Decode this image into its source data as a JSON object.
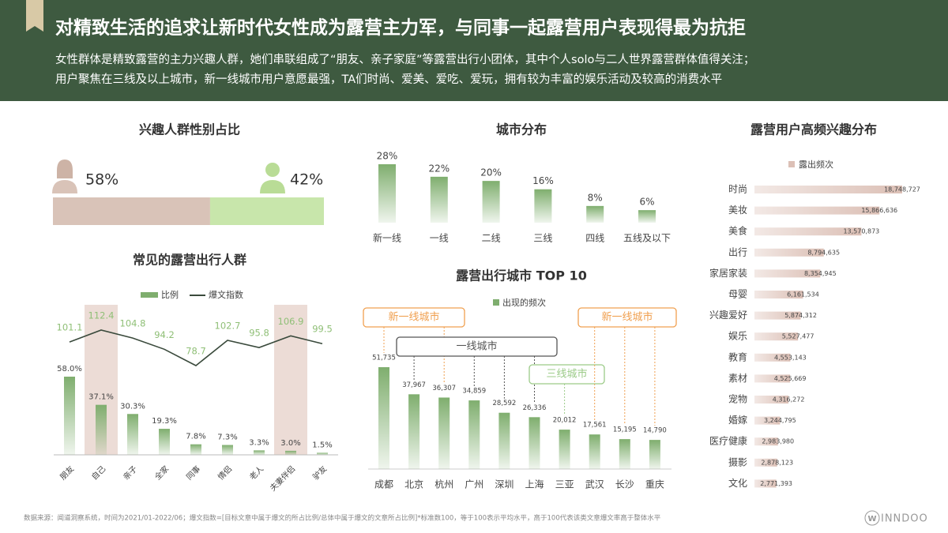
{
  "header": {
    "title": "对精致生活的追求让新时代女性成为露营主力军，与同事一起露营用户表现得最为抗拒",
    "lines": [
      "女性群体是精致露营的主力兴趣人群，她们串联组成了“朋友、亲子家庭”等露营出行小团体，其中个人solo与二人世界露营群体值得关注；",
      "用户聚焦在三线及以上城市，新一线城市用户意愿最强，TA们时尚、爱美、爱吃、爱玩，拥有较为丰富的娱乐活动及较高的消费水平"
    ]
  },
  "chart_data": [
    {
      "type": "proportion",
      "title": "兴趣人群性别占比",
      "values": [
        58,
        42
      ],
      "value_labels": [
        "58%",
        "42%"
      ],
      "colors": [
        "#d9c3b8",
        "#c8e6ab"
      ]
    },
    {
      "type": "bar",
      "title": "城市分布",
      "categories": [
        "新一线",
        "一线",
        "二线",
        "三线",
        "四线",
        "五线及以下"
      ],
      "values": [
        28,
        22,
        20,
        16,
        8,
        6
      ],
      "value_labels": [
        "28%",
        "22%",
        "20%",
        "16%",
        "8%",
        "6%"
      ],
      "color": "#7fae6e"
    },
    {
      "type": "combo",
      "title": "常见的露营出行人群",
      "categories": [
        "朋友",
        "自己",
        "亲子",
        "全家",
        "同事",
        "情侣",
        "老人",
        "夫妻伴侣",
        "驴友"
      ],
      "highlight": [
        1,
        7
      ],
      "series": [
        {
          "name": "比例",
          "type": "bar",
          "color": "#7fae6e",
          "values": [
            58.0,
            37.1,
            30.3,
            19.3,
            7.8,
            7.3,
            3.3,
            3.0,
            1.5
          ],
          "value_labels": [
            "58.0%",
            "37.1%",
            "30.3%",
            "19.3%",
            "7.8%",
            "7.3%",
            "3.3%",
            "3.0%",
            "1.5%"
          ]
        },
        {
          "name": "爆文指数",
          "type": "line",
          "color": "#3a4a3c",
          "label_color": "#8fbf76",
          "values": [
            101.1,
            112.4,
            104.8,
            94.2,
            78.7,
            102.7,
            95.8,
            106.9,
            99.5
          ]
        }
      ]
    },
    {
      "type": "bar",
      "title": "露营出行城市 TOP 10",
      "categories": [
        "成都",
        "北京",
        "杭州",
        "广州",
        "深圳",
        "上海",
        "三亚",
        "武汉",
        "长沙",
        "重庆"
      ],
      "series": [
        {
          "name": "出现的频次",
          "color": "#7fae6e",
          "values": [
            51735,
            37967,
            36307,
            34859,
            28592,
            26336,
            20012,
            17561,
            15195,
            14790
          ],
          "value_labels": [
            "51,735",
            "37,967",
            "36,307",
            "34,859",
            "28,592",
            "26,336",
            "20,012",
            "17,561",
            "15,195",
            "14,790"
          ]
        }
      ],
      "groups": [
        {
          "label": "新一线城市",
          "members": [
            0,
            2
          ],
          "color": "#f0a050"
        },
        {
          "label": "一线城市",
          "members": [
            1,
            3,
            4,
            5
          ],
          "color": "#555555"
        },
        {
          "label": "三线城市",
          "members": [
            6
          ],
          "color": "#9ccb88"
        },
        {
          "label": "新一线城市",
          "members": [
            7,
            8,
            9
          ],
          "color": "#f0a050"
        }
      ]
    },
    {
      "type": "hbar",
      "title": "露营用户高频兴趣分布",
      "categories": [
        "时尚",
        "美妆",
        "美食",
        "出行",
        "家居家装",
        "母婴",
        "兴趣爱好",
        "娱乐",
        "教育",
        "素材",
        "宠物",
        "婚嫁",
        "医疗健康",
        "摄影",
        "文化"
      ],
      "series": [
        {
          "name": "露出频次",
          "color": "#dcc0b6",
          "values": [
            18748727,
            15866636,
            13570873,
            8794635,
            8354945,
            6161534,
            5874312,
            5527477,
            4553143,
            4525669,
            4316272,
            3244795,
            2983980,
            2878123,
            2771393
          ],
          "value_labels": [
            "18,748,727",
            "15,866,636",
            "13,570,873",
            "8,794,635",
            "8,354,945",
            "6,161,534",
            "5,874,312",
            "5,527,477",
            "4,553,143",
            "4,525,669",
            "4,316,272",
            "3,244,795",
            "2,983,980",
            "2,878,123",
            "2,771,393"
          ]
        }
      ]
    }
  ],
  "footer": {
    "source": "数据来源：闻道洞察系统，时间为2021/01-2022/06；爆文指数=[目标文章中属于爆文的所占比例/总体中属于爆文的文章所占比例]*标准数100，等于100表示平均水平，高于100代表该类文章爆文率高于整体水平",
    "logo_mark": "W",
    "logo": "INNDOO"
  }
}
